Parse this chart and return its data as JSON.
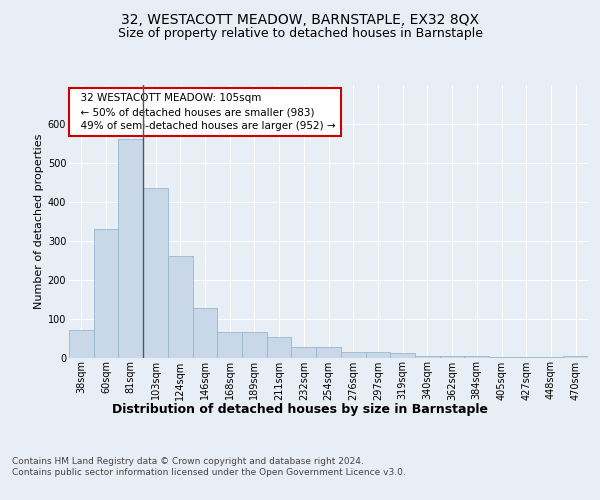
{
  "title": "32, WESTACOTT MEADOW, BARNSTAPLE, EX32 8QX",
  "subtitle": "Size of property relative to detached houses in Barnstaple",
  "xlabel": "Distribution of detached houses by size in Barnstaple",
  "ylabel": "Number of detached properties",
  "categories": [
    "38sqm",
    "60sqm",
    "81sqm",
    "103sqm",
    "124sqm",
    "146sqm",
    "168sqm",
    "189sqm",
    "211sqm",
    "232sqm",
    "254sqm",
    "276sqm",
    "297sqm",
    "319sqm",
    "340sqm",
    "362sqm",
    "384sqm",
    "405sqm",
    "427sqm",
    "448sqm",
    "470sqm"
  ],
  "values": [
    70,
    330,
    560,
    435,
    260,
    127,
    65,
    65,
    52,
    28,
    28,
    15,
    15,
    12,
    5,
    5,
    3,
    2,
    2,
    2,
    5
  ],
  "bar_color": "#c8d8e8",
  "bar_edge_color": "#9ab8cc",
  "highlight_index": 3,
  "highlight_line_color": "#555555",
  "annotation_text": "  32 WESTACOTT MEADOW: 105sqm\n  ← 50% of detached houses are smaller (983)\n  49% of semi-detached houses are larger (952) →",
  "annotation_box_color": "white",
  "annotation_box_edge": "#cc0000",
  "ylim": [
    0,
    700
  ],
  "yticks": [
    0,
    100,
    200,
    300,
    400,
    500,
    600,
    700
  ],
  "background_color": "#e8eef5",
  "plot_bg_color": "#e8eef5",
  "grid_color": "white",
  "footer_text": "Contains HM Land Registry data © Crown copyright and database right 2024.\nContains public sector information licensed under the Open Government Licence v3.0.",
  "title_fontsize": 10,
  "subtitle_fontsize": 9,
  "xlabel_fontsize": 9,
  "ylabel_fontsize": 8,
  "tick_fontsize": 7,
  "annotation_fontsize": 7.5,
  "footer_fontsize": 6.5
}
